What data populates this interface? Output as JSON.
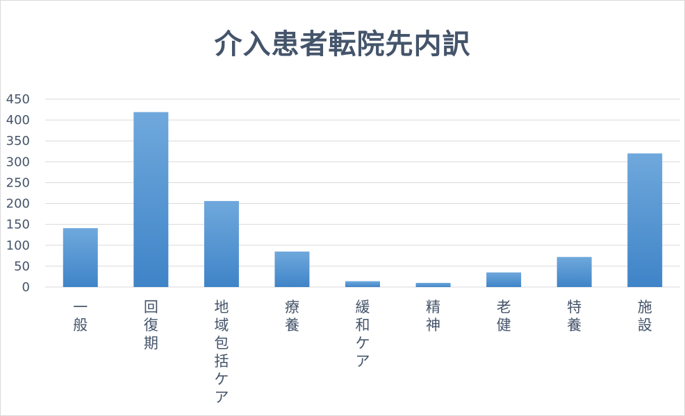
{
  "chart_data": {
    "type": "bar",
    "title": "介入患者転院先内訳",
    "xlabel": "",
    "ylabel": "",
    "categories": [
      "一般",
      "回復期",
      "地域包括ケア",
      "療養",
      "緩和ケア",
      "精神",
      "老健",
      "特養",
      "施設"
    ],
    "values": [
      141,
      419,
      206,
      85,
      14,
      10,
      35,
      72,
      320
    ],
    "ylim": [
      0,
      450
    ],
    "yticks": [
      0,
      50,
      100,
      150,
      200,
      250,
      300,
      350,
      400,
      450
    ],
    "grid": true,
    "legend": "none",
    "colors": {
      "bar_top": "#6fa8dc",
      "bar_bottom": "#3f84c8",
      "grid": "#d9d9d9",
      "text": "#44546a"
    }
  }
}
